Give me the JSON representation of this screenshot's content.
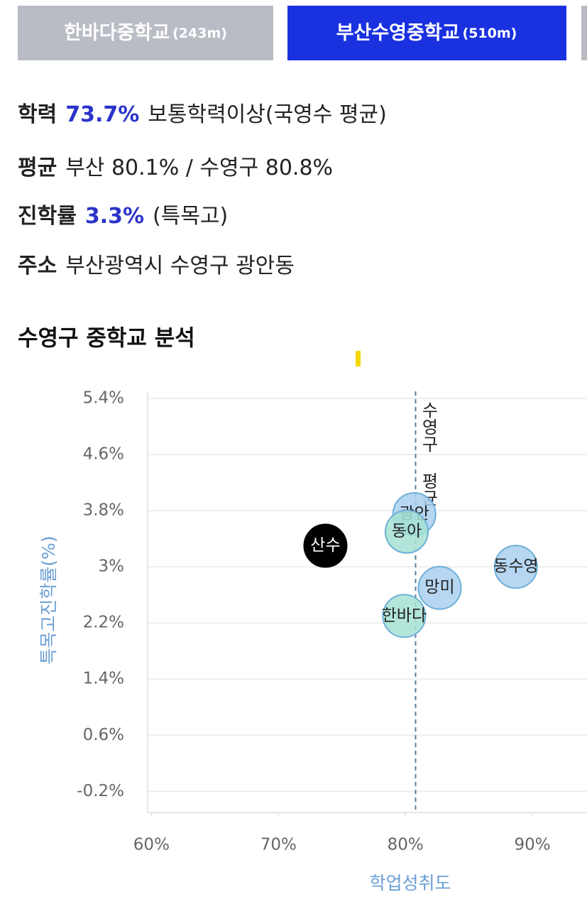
{
  "tabs": [
    {
      "name": "한바다중학교",
      "distance": "(243m)"
    },
    {
      "name": "부산수영중학교",
      "distance": "(510m)"
    }
  ],
  "info": [
    {
      "label": "학력",
      "highlight": "73.7%",
      "text": "보통학력이상(국영수 평균)"
    },
    {
      "label": "평균",
      "text": "부산 80.1% / 수영구 80.8%"
    },
    {
      "label": "진학률",
      "highlight": "3.3%",
      "text": "(특목고)"
    },
    {
      "label": "주소",
      "text": "부산광역시 수영구 광안동"
    }
  ],
  "section_title": "수영구 중학교 분석",
  "chart_data": {
    "type": "scatter",
    "xlabel": "학업성취도",
    "ylabel": "특목고진학률(%)",
    "xlim": [
      59.7,
      94.3
    ],
    "ylim": [
      -0.5,
      5.5
    ],
    "xticks": [
      {
        "value": 60,
        "label": "60%"
      },
      {
        "value": 70,
        "label": "70%"
      },
      {
        "value": 80,
        "label": "80%"
      },
      {
        "value": 90,
        "label": "90%"
      }
    ],
    "yticks": [
      {
        "value": 5.4,
        "label": "5.4%"
      },
      {
        "value": 4.6,
        "label": "4.6%"
      },
      {
        "value": 3.8,
        "label": "3.8%"
      },
      {
        "value": 3,
        "label": "3%"
      },
      {
        "value": 2.2,
        "label": "2.2%"
      },
      {
        "value": 1.4,
        "label": "1.4%"
      },
      {
        "value": 0.6,
        "label": "0.6%"
      },
      {
        "value": -0.2,
        "label": "-0.2%"
      }
    ],
    "grid": true,
    "points": [
      {
        "label": "산수",
        "x": 73.7,
        "y": 3.3,
        "color": "#000000"
      },
      {
        "label": "광안",
        "x": 80.7,
        "y": 3.75,
        "color": "#a9cfee"
      },
      {
        "label": "동아",
        "x": 80.1,
        "y": 3.5,
        "color": "#a6e1d3"
      },
      {
        "label": "망미",
        "x": 82.7,
        "y": 2.7,
        "color": "#a9cfee"
      },
      {
        "label": "한바다",
        "x": 79.9,
        "y": 2.3,
        "color": "#a6e1d3"
      },
      {
        "label": "동수영",
        "x": 88.7,
        "y": 3.0,
        "color": "#a9cfee"
      }
    ],
    "reference_line": {
      "value": 80.8,
      "label": "수영구 평균"
    }
  }
}
